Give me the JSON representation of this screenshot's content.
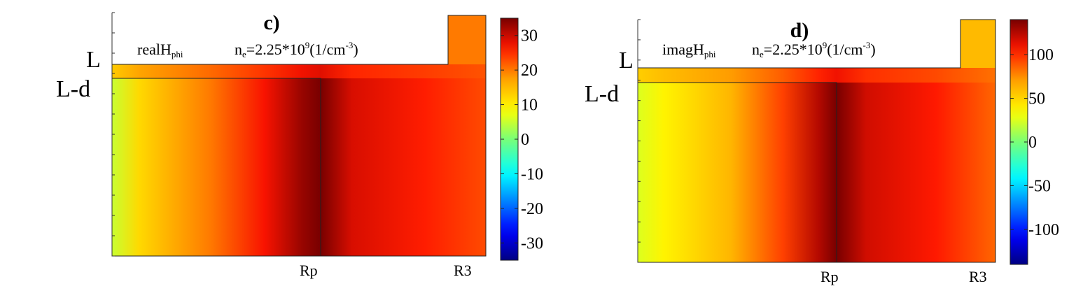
{
  "chart_data": [
    {
      "type": "heatmap",
      "panel_label": "c)",
      "quantity": "realH",
      "quantity_sub": "phi",
      "density_prefix": "n",
      "density_sub": "e",
      "density_value": "=2.25*10",
      "density_exp": "9",
      "density_unit_open": "(1/cm",
      "density_unit_exp": "-3",
      "density_unit_close": ")",
      "y_tick_labels": [
        "L",
        "L-d"
      ],
      "x_tick_labels": [
        "Rp",
        "R3"
      ],
      "colorbar": {
        "min": -35,
        "max": 35,
        "ticks": [
          30,
          20,
          10,
          0,
          -10,
          -20,
          -30
        ]
      },
      "field_profile": {
        "x": [
          0,
          0.13,
          0.47,
          0.73,
          0.91,
          1.0,
          1.15,
          1.5,
          1.8
        ],
        "values": [
          5,
          12,
          20,
          27,
          33,
          35,
          29,
          26,
          23
        ]
      },
      "upper_strip_value": 22,
      "notch_value": 20
    },
    {
      "type": "heatmap",
      "panel_label": "d)",
      "quantity": "imagH",
      "quantity_sub": "phi",
      "density_prefix": "n",
      "density_sub": "e",
      "density_value": "=2.25*10",
      "density_exp": "9",
      "density_unit_open": "(1/cm",
      "density_unit_exp": "-3",
      "density_unit_close": ")",
      "y_tick_labels": [
        "L",
        "L-d"
      ],
      "x_tick_labels": [
        "Rp",
        "R3"
      ],
      "colorbar": {
        "min": -140,
        "max": 140,
        "ticks": [
          100,
          50,
          0,
          -50,
          -100
        ]
      },
      "field_profile": {
        "x": [
          0,
          0.13,
          0.47,
          0.73,
          0.91,
          1.0,
          1.15,
          1.5,
          1.8
        ],
        "values": [
          25,
          38,
          62,
          95,
          125,
          140,
          118,
          105,
          85
        ]
      },
      "upper_strip_value": 80,
      "notch_value": 60
    }
  ]
}
